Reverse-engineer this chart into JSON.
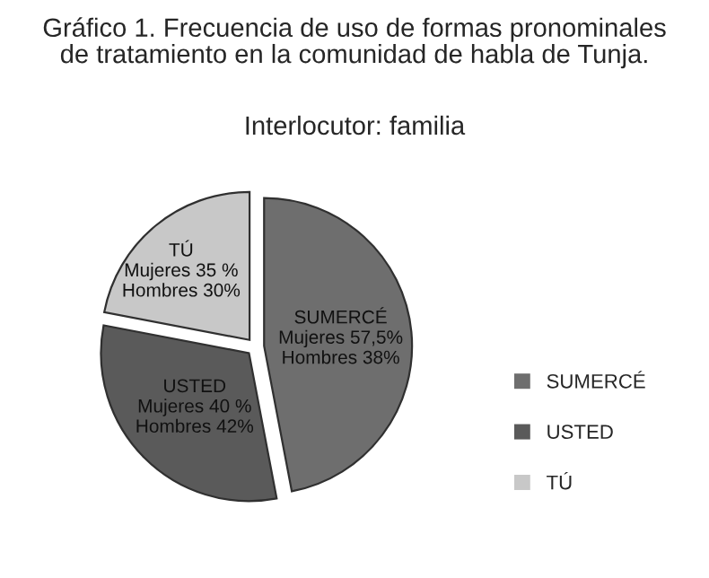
{
  "chart_data": {
    "type": "pie",
    "title": "Gráfico 1. Frecuencia de uso de formas pronominales\nde tratamiento en la comunidad de habla de Tunja.",
    "subtitle": "Interlocutor: familia",
    "categories": [
      "SUMERCÉ",
      "USTED",
      "TÚ"
    ],
    "values": [
      47,
      31,
      22
    ],
    "colors": [
      "#6e6e6e",
      "#5a5a5a",
      "#c8c8c8"
    ],
    "annotations": [
      "Mujeres 57,5%\nHombres 38%",
      "Mujeres 40 %\nHombres 42%",
      "Mujeres 35 %\nHombres 30%"
    ],
    "legend": "right"
  }
}
